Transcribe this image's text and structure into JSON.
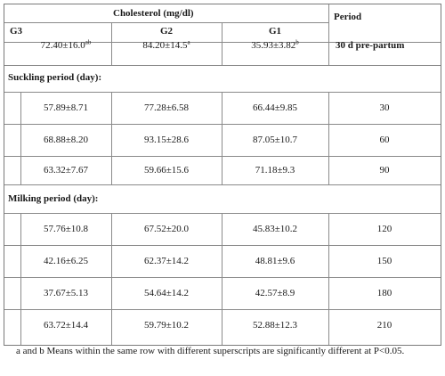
{
  "header": {
    "group_title": "Cholesterol (mg/dl)",
    "period_title": "Period",
    "col_g3": "G3",
    "col_g2": "G2",
    "col_g1": "G1"
  },
  "prepartum": {
    "g3": "72.40±16.0",
    "g3_sup": "ab",
    "g2": "84.20±14.5",
    "g2_sup": "a",
    "g1": "35.93±3.82",
    "g1_sup": "b",
    "period": "30 d pre-partum"
  },
  "suckling": {
    "label": "Suckling period (day):",
    "rows": [
      {
        "g3": "57.89±8.71",
        "g2": "77.28±6.58",
        "g1": "66.44±9.85",
        "period": "30"
      },
      {
        "g3": "68.88±8.20",
        "g2": "93.15±28.6",
        "g1": "87.05±10.7",
        "period": "60"
      },
      {
        "g3": "63.32±7.67",
        "g2": "59.66±15.6",
        "g1": "71.18±9.3",
        "period": "90"
      }
    ]
  },
  "milking": {
    "label": "Milking period (day):",
    "rows": [
      {
        "g3": "57.76±10.8",
        "g2": "67.52±20.0",
        "g1": "45.83±10.2",
        "period": "120"
      },
      {
        "g3": "42.16±6.25",
        "g2": "62.37±14.2",
        "g1": "48.81±9.6",
        "period": "150"
      },
      {
        "g3": "37.67±5.13",
        "g2": "54.64±14.2",
        "g1": "42.57±8.9",
        "period": "180"
      },
      {
        "g3": "63.72±14.4",
        "g2": "59.79±10.2",
        "g1": "52.88±12.3",
        "period": "210"
      }
    ]
  },
  "footnote": "a and b Means within the same row with different superscripts are significantly different at P<0.05."
}
